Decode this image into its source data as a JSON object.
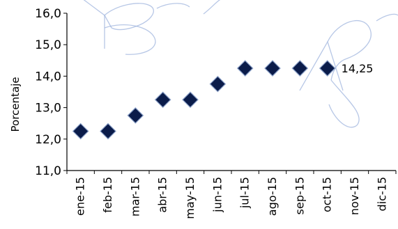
{
  "chart_data": {
    "type": "scatter",
    "title": "",
    "xlabel": "",
    "ylabel": "Porcentaje",
    "categories": [
      "ene-15",
      "feb-15",
      "mar-15",
      "abr-15",
      "may-15",
      "jun-15",
      "jul-15",
      "ago-15",
      "sep-15",
      "oct-15",
      "nov-15",
      "dic-15"
    ],
    "series": [
      {
        "values": [
          12.25,
          12.25,
          12.75,
          13.25,
          13.25,
          13.75,
          14.25,
          14.25,
          14.25,
          14.25,
          null,
          null
        ]
      }
    ],
    "ylim": [
      11.0,
      16.0
    ],
    "yticks": [
      "11,0",
      "12,0",
      "13,0",
      "14,0",
      "15,0",
      "16,0"
    ],
    "annotations": [
      {
        "category": "oct-15",
        "text": "14,25"
      }
    ],
    "grid": false,
    "legend": "none",
    "marker_color": "#0b1c4a",
    "marker_edge_color": "#8aa0c8",
    "watermark_color": "#9fb4de"
  }
}
